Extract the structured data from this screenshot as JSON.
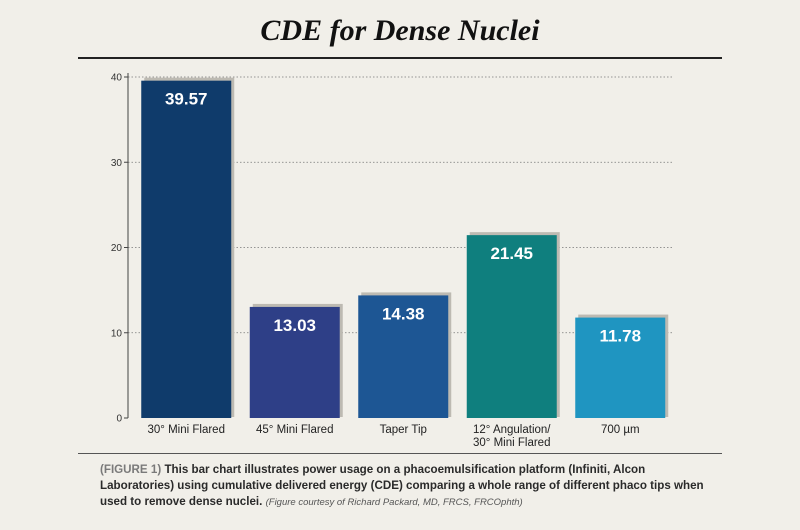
{
  "chart_data": {
    "type": "bar",
    "title": "CDE for Dense Nuclei",
    "categories": [
      [
        "30° Mini Flared"
      ],
      [
        "45° Mini Flared"
      ],
      [
        "Taper Tip"
      ],
      [
        "12° Angulation/",
        "30° Mini Flared"
      ],
      [
        "700 µm"
      ]
    ],
    "values": [
      39.57,
      13.03,
      14.38,
      21.45,
      11.78
    ],
    "value_labels": [
      "39.57",
      "13.03",
      "14.38",
      "21.45",
      "11.78"
    ],
    "bar_colors": [
      "#0f3b6b",
      "#2e3f87",
      "#1d5694",
      "#0f7f7e",
      "#1f95c1"
    ],
    "ylim": [
      0,
      40
    ],
    "yticks": [
      0,
      10,
      20,
      30,
      40
    ],
    "grid": "dotted horizontal",
    "xlabel": "",
    "ylabel": ""
  },
  "caption": {
    "tag": "(FIGURE 1)",
    "text": "This bar chart illustrates power usage on a phacoemulsification platform (Infiniti, Alcon Laboratories) using cumulative delivered energy (CDE) comparing a whole range of different phaco tips when used to remove dense nuclei.",
    "credit": "(Figure courtesy of Richard Packard, MD, FRCS, FRCOphth)"
  }
}
